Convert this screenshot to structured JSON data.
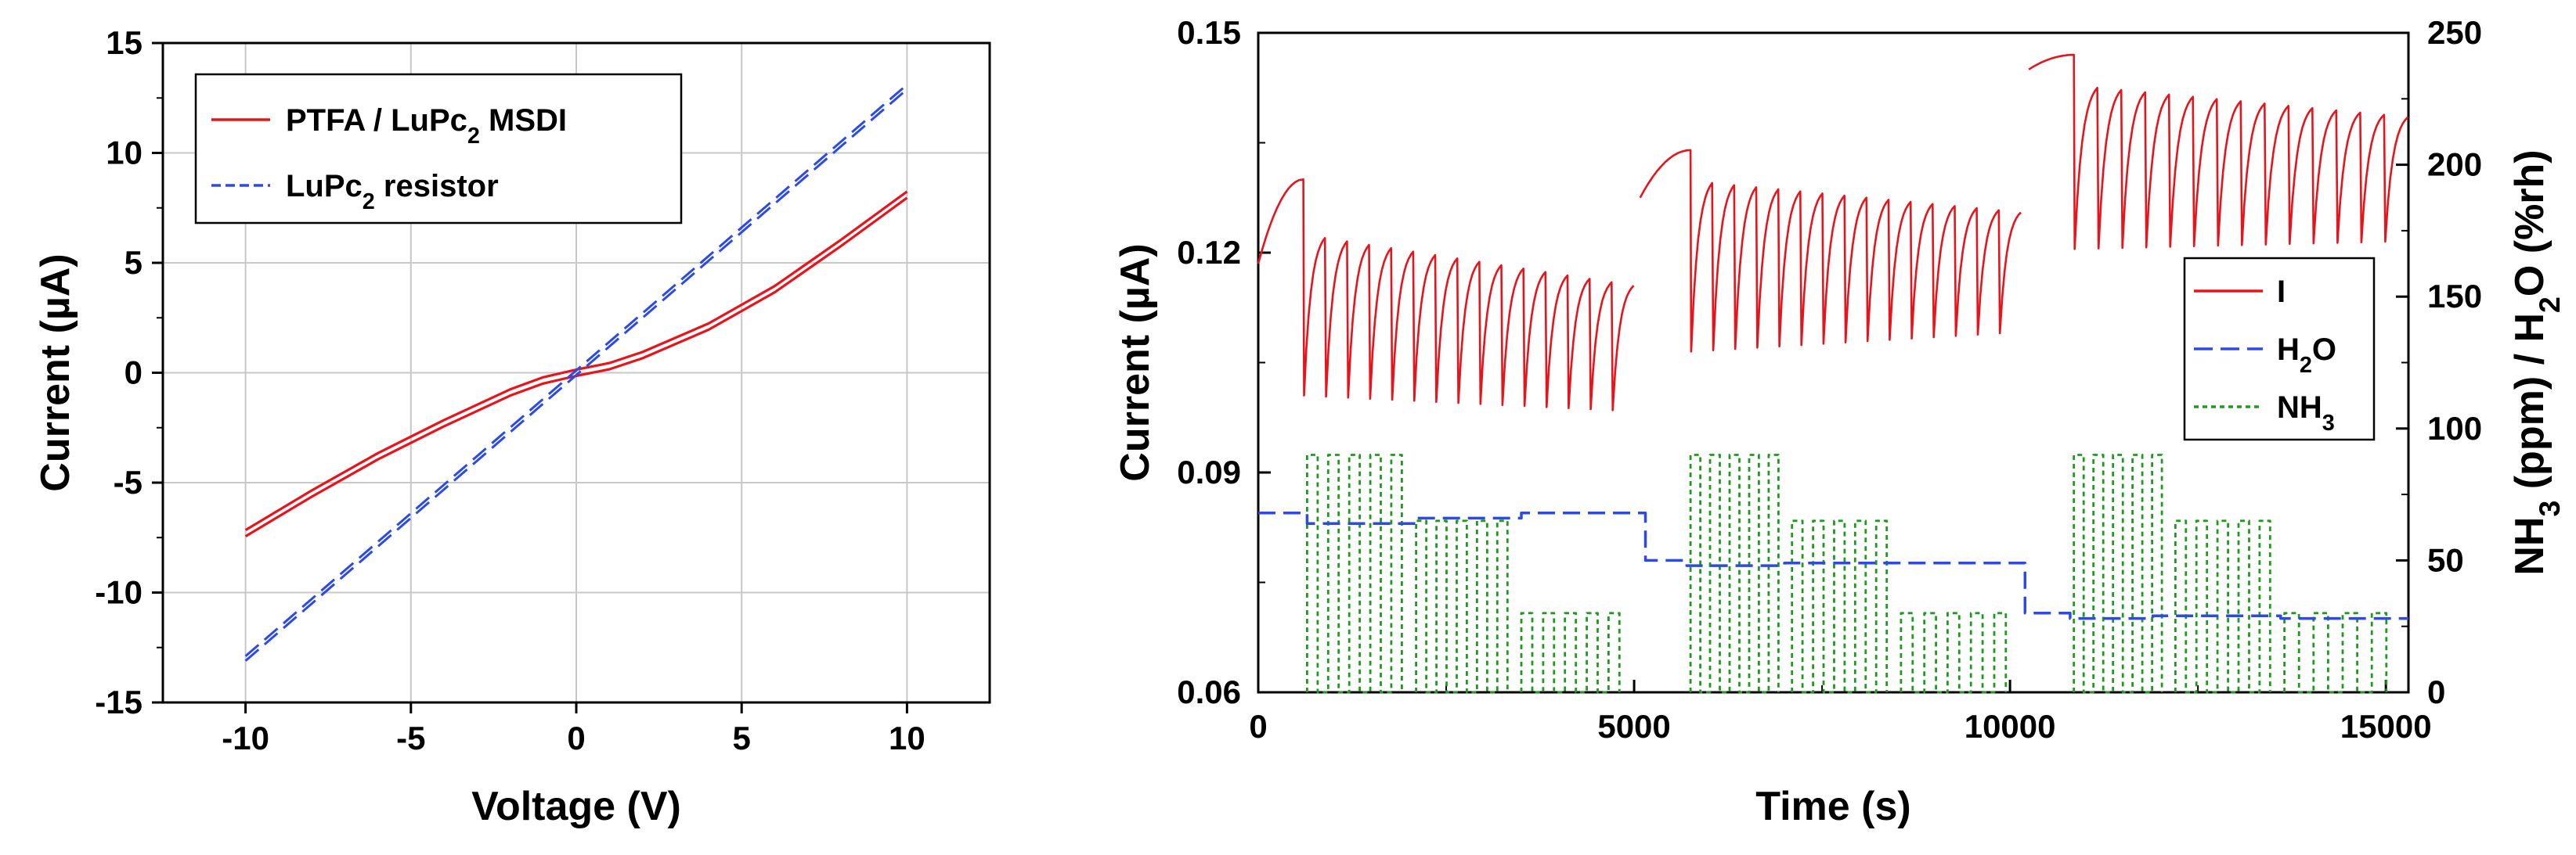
{
  "chart_data": [
    {
      "type": "line",
      "xlabel": "Voltage (V)",
      "ylabel": "Current (µA)",
      "xlim": [
        -12.5,
        12.5
      ],
      "ylim": [
        -15,
        15
      ],
      "xticks": [
        -10,
        -5,
        0,
        5,
        10
      ],
      "yticks": [
        -15,
        -10,
        -5,
        0,
        5,
        10,
        15
      ],
      "grid": true,
      "legend_position": "top-left",
      "series": [
        {
          "name": "PTFA / LuPc2 MSDI",
          "legend_main": "PTFA / LuPc",
          "legend_sub": "2",
          "legend_tail": " MSDI",
          "color": "#e8141b",
          "style": "solid",
          "x": [
            -10,
            -8,
            -6,
            -4,
            -2,
            -1,
            0,
            1,
            2,
            4,
            6,
            8,
            10
          ],
          "y": [
            -7.3,
            -5.5,
            -3.8,
            -2.3,
            -0.9,
            -0.35,
            0,
            0.3,
            0.8,
            2.1,
            3.8,
            5.9,
            8.1
          ]
        },
        {
          "name": "LuPc2 resistor",
          "legend_main": "LuPc",
          "legend_sub": "2",
          "legend_tail": " resistor",
          "color": "#2b4ae6",
          "style": "dashed",
          "x": [
            -10,
            10
          ],
          "y": [
            -13,
            13
          ]
        }
      ]
    },
    {
      "type": "line",
      "xlabel": "Time (s)",
      "ylabel": "Current (µA)",
      "ylabel_right": "NH3 (ppm) / H2O (%rh)",
      "ylabel_right_parts": [
        "NH",
        "3",
        " (ppm) / H",
        "2",
        "O (%rh)"
      ],
      "xlim": [
        0,
        15300
      ],
      "ylim": [
        0.06,
        0.15
      ],
      "ylim_right": [
        0,
        250
      ],
      "xticks": [
        0,
        5000,
        10000,
        15000
      ],
      "yticks": [
        0.06,
        0.09,
        0.12,
        0.15
      ],
      "yticks_right": [
        0,
        50,
        100,
        150,
        200,
        250
      ],
      "grid": false,
      "legend_position": "middle-right",
      "series": [
        {
          "name": "I",
          "legend_main": "I",
          "legend_sub": "",
          "legend_tail": "",
          "color": "#e8141b",
          "style": "solid",
          "axis": "left",
          "phases": [
            {
              "start": 0,
              "rise_end": 600,
              "start_value": 0.1185,
              "rise_value": 0.13,
              "cycles": 15,
              "cycle_end": 5000,
              "high_first": 0.122,
              "high_last": 0.1155,
              "low_first": 0.1005,
              "low_last": 0.0985
            },
            {
              "start": 5080,
              "rise_end": 5750,
              "start_value": 0.1275,
              "rise_value": 0.134,
              "cycles": 15,
              "cycle_end": 10150,
              "high_first": 0.1295,
              "high_last": 0.1255,
              "low_first": 0.1065,
              "low_last": 0.109
            },
            {
              "start": 10250,
              "rise_end": 10850,
              "start_value": 0.145,
              "rise_value": 0.147,
              "cycles": 14,
              "cycle_end": 15300,
              "high_first": 0.1425,
              "high_last": 0.1385,
              "low_first": 0.1205,
              "low_last": 0.1215
            }
          ]
        },
        {
          "name": "H2O",
          "legend_main": "H",
          "legend_sub": "2",
          "legend_tail": "O",
          "color": "#2b4ae6",
          "style": "dashed",
          "axis": "right",
          "x": [
            0,
            650,
            650,
            2100,
            2100,
            3500,
            3500,
            5000,
            5000,
            5150,
            5150,
            5700,
            5700,
            7000,
            7000,
            10200,
            10200,
            10800,
            10800,
            11900,
            11900,
            13600,
            13600,
            15300
          ],
          "y": [
            68,
            68,
            64,
            64,
            66,
            66,
            68,
            68,
            68,
            68,
            50,
            50,
            48,
            48,
            49,
            49,
            30,
            30,
            28,
            28,
            29,
            29,
            28,
            28
          ]
        },
        {
          "name": "NH3",
          "legend_main": "NH",
          "legend_sub": "3",
          "legend_tail": "",
          "color": "#1f9a1f",
          "style": "dotted",
          "axis": "right",
          "blocks": [
            {
              "start": 650,
              "end": 2050,
              "n": 5,
              "level": 90
            },
            {
              "start": 2100,
              "end": 3450,
              "n": 5,
              "level": 65
            },
            {
              "start": 3500,
              "end": 4950,
              "n": 5,
              "level": 30
            },
            {
              "start": 5750,
              "end": 7050,
              "n": 5,
              "level": 90
            },
            {
              "start": 7100,
              "end": 8500,
              "n": 5,
              "level": 65
            },
            {
              "start": 8550,
              "end": 10100,
              "n": 5,
              "level": 30
            },
            {
              "start": 10850,
              "end": 12150,
              "n": 5,
              "level": 90
            },
            {
              "start": 12200,
              "end": 13600,
              "n": 5,
              "level": 65
            },
            {
              "start": 13650,
              "end": 15200,
              "n": 4,
              "level": 30
            }
          ]
        }
      ]
    }
  ]
}
